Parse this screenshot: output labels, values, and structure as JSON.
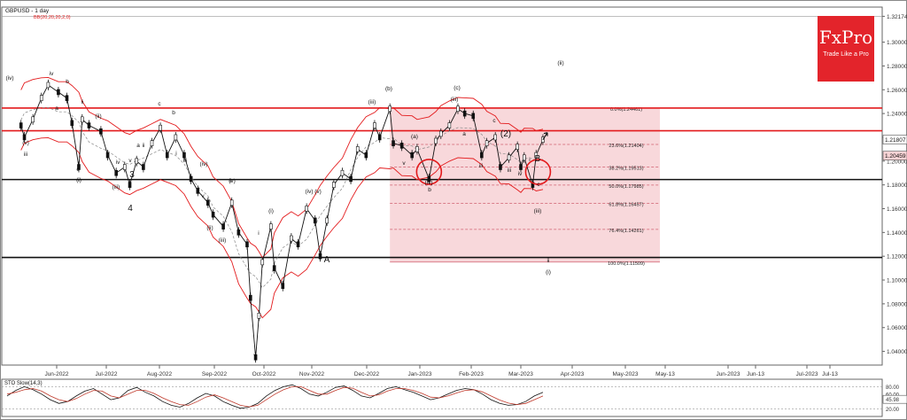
{
  "chart_data": {
    "type": "line",
    "title": "GBPUSD - 1 day",
    "indicator_label": "BB(20,20,20,2,0)",
    "oscillator_label": "STO Slow(14,3)",
    "y_ticks": [
      "1.32174",
      "1.30000",
      "1.28000",
      "1.26000",
      "1.24000",
      "1.22000",
      "1.20000",
      "1.18000",
      "1.16000",
      "1.14000",
      "1.12000",
      "1.10000",
      "1.08000",
      "1.06000",
      "1.04000"
    ],
    "price_tags": [
      "1.21807",
      "1.20459"
    ],
    "x_ticks": [
      "Jun-2022",
      "Jul-2022",
      "Aug-2022",
      "Sep-2022",
      "Oct-2022",
      "Nov-2022",
      "Dec-2022",
      "Jan-2023",
      "Feb-2023",
      "Mar-2023",
      "Apr-2023",
      "May-2023",
      "May-13",
      "Jun-2023",
      "Jun-13",
      "Jul-2023",
      "Jul-13"
    ],
    "osc_ticks": [
      "80.00",
      "60.00",
      "45.98",
      "20.00"
    ],
    "y_range": [
      1.0285,
      1.3295
    ],
    "fib_levels": [
      {
        "label": "0.0%(1.24461)",
        "value": 1.24461
      },
      {
        "label": "23.6%(1.21404)",
        "value": 1.21404
      },
      {
        "label": "38.2%(1.19513)",
        "value": 1.19513
      },
      {
        "label": "50.0%(1.17985)",
        "value": 1.17985
      },
      {
        "label": "61.8%(1.16457)",
        "value": 1.16457
      },
      {
        "label": "76.4%(1.14261)",
        "value": 1.14261
      },
      {
        "label": "100.0%(1.11509)",
        "value": 1.11509
      }
    ],
    "horizontal_lines": [
      {
        "value": 1.2446,
        "color": "#e31a1c"
      },
      {
        "value": 1.2255,
        "color": "#e31a1c"
      },
      {
        "value": 1.1845,
        "color": "#111111"
      },
      {
        "value": 1.119,
        "color": "#111111"
      }
    ],
    "price_path": [
      {
        "x": "2022-05-11",
        "y": 1.23
      },
      {
        "x": "2022-05-13",
        "y": 1.22
      },
      {
        "x": "2022-05-18",
        "y": 1.235
      },
      {
        "x": "2022-05-23",
        "y": 1.253
      },
      {
        "x": "2022-05-27",
        "y": 1.264
      },
      {
        "x": "2022-06-02",
        "y": 1.258
      },
      {
        "x": "2022-06-07",
        "y": 1.253
      },
      {
        "x": "2022-06-10",
        "y": 1.232
      },
      {
        "x": "2022-06-14",
        "y": 1.195
      },
      {
        "x": "2022-06-16",
        "y": 1.235
      },
      {
        "x": "2022-06-20",
        "y": 1.23
      },
      {
        "x": "2022-06-27",
        "y": 1.225
      },
      {
        "x": "2022-07-01",
        "y": 1.205
      },
      {
        "x": "2022-07-06",
        "y": 1.19
      },
      {
        "x": "2022-07-11",
        "y": 1.195
      },
      {
        "x": "2022-07-14",
        "y": 1.18
      },
      {
        "x": "2022-07-18",
        "y": 1.2
      },
      {
        "x": "2022-07-22",
        "y": 1.195
      },
      {
        "x": "2022-07-27",
        "y": 1.215
      },
      {
        "x": "2022-08-01",
        "y": 1.228
      },
      {
        "x": "2022-08-05",
        "y": 1.205
      },
      {
        "x": "2022-08-10",
        "y": 1.22
      },
      {
        "x": "2022-08-15",
        "y": 1.205
      },
      {
        "x": "2022-08-19",
        "y": 1.185
      },
      {
        "x": "2022-08-23",
        "y": 1.175
      },
      {
        "x": "2022-08-29",
        "y": 1.165
      },
      {
        "x": "2022-09-01",
        "y": 1.155
      },
      {
        "x": "2022-09-07",
        "y": 1.145
      },
      {
        "x": "2022-09-12",
        "y": 1.165
      },
      {
        "x": "2022-09-16",
        "y": 1.14
      },
      {
        "x": "2022-09-21",
        "y": 1.13
      },
      {
        "x": "2022-09-23",
        "y": 1.085
      },
      {
        "x": "2022-09-26",
        "y": 1.035
      },
      {
        "x": "2022-09-28",
        "y": 1.07
      },
      {
        "x": "2022-09-30",
        "y": 1.115
      },
      {
        "x": "2022-10-05",
        "y": 1.145
      },
      {
        "x": "2022-10-07",
        "y": 1.11
      },
      {
        "x": "2022-10-12",
        "y": 1.095
      },
      {
        "x": "2022-10-17",
        "y": 1.135
      },
      {
        "x": "2022-10-21",
        "y": 1.13
      },
      {
        "x": "2022-10-26",
        "y": 1.16
      },
      {
        "x": "2022-10-31",
        "y": 1.15
      },
      {
        "x": "2022-11-03",
        "y": 1.12
      },
      {
        "x": "2022-11-07",
        "y": 1.15
      },
      {
        "x": "2022-11-11",
        "y": 1.18
      },
      {
        "x": "2022-11-16",
        "y": 1.19
      },
      {
        "x": "2022-11-21",
        "y": 1.185
      },
      {
        "x": "2022-11-25",
        "y": 1.21
      },
      {
        "x": "2022-11-30",
        "y": 1.205
      },
      {
        "x": "2022-12-05",
        "y": 1.23
      },
      {
        "x": "2022-12-08",
        "y": 1.22
      },
      {
        "x": "2022-12-14",
        "y": 1.244
      },
      {
        "x": "2022-12-16",
        "y": 1.215
      },
      {
        "x": "2022-12-21",
        "y": 1.213
      },
      {
        "x": "2022-12-27",
        "y": 1.205
      },
      {
        "x": "2022-12-30",
        "y": 1.21
      },
      {
        "x": "2023-01-06",
        "y": 1.185
      },
      {
        "x": "2023-01-10",
        "y": 1.217
      },
      {
        "x": "2023-01-13",
        "y": 1.223
      },
      {
        "x": "2023-01-18",
        "y": 1.23
      },
      {
        "x": "2023-01-23",
        "y": 1.244
      },
      {
        "x": "2023-01-27",
        "y": 1.24
      },
      {
        "x": "2023-02-01",
        "y": 1.238
      },
      {
        "x": "2023-02-06",
        "y": 1.205
      },
      {
        "x": "2023-02-09",
        "y": 1.215
      },
      {
        "x": "2023-02-14",
        "y": 1.22
      },
      {
        "x": "2023-02-17",
        "y": 1.195
      },
      {
        "x": "2023-02-22",
        "y": 1.203
      },
      {
        "x": "2023-02-27",
        "y": 1.212
      },
      {
        "x": "2023-03-01",
        "y": 1.195
      },
      {
        "x": "2023-03-03",
        "y": 1.203
      },
      {
        "x": "2023-03-08",
        "y": 1.18
      },
      {
        "x": "2023-03-10",
        "y": 1.205
      },
      {
        "x": "2023-03-14",
        "y": 1.218
      }
    ],
    "wave_labels": [
      "(iv)",
      "(v)",
      "iii",
      "iv",
      "a",
      "b",
      "c",
      "ii",
      "i",
      "(i)",
      "(ii)",
      "(iii)",
      "iv",
      "v",
      "3",
      "4",
      "c",
      "b",
      "a",
      "ii",
      "i",
      "iii",
      "(iv)",
      "(v)",
      "v",
      "(iii)",
      "(ii)",
      "ii",
      "i",
      "(i)",
      "v",
      "iii",
      "(iv)",
      "(v)",
      "A",
      "(iii)",
      "(b)",
      "(c)",
      "(a)",
      "(iv)",
      "v",
      "b",
      "(iii)",
      "c",
      "a",
      "iii",
      "(2)",
      "B",
      "c",
      "(ii)",
      "(i)",
      "ii",
      "iii",
      "iv",
      "i",
      "(iii)"
    ],
    "stoch_k": [
      55,
      70,
      80,
      72,
      60,
      45,
      35,
      40,
      55,
      68,
      75,
      60,
      45,
      50,
      70,
      78,
      65,
      55,
      40,
      30,
      25,
      35,
      50,
      62,
      55,
      40,
      30,
      22,
      25,
      35,
      55,
      70,
      80,
      85,
      75,
      60,
      55,
      65,
      78,
      82,
      70,
      55,
      50,
      62,
      75,
      80,
      72,
      65,
      55,
      45,
      50,
      60,
      70,
      75,
      72,
      60,
      45,
      35,
      30,
      32,
      40,
      55,
      65
    ],
    "stoch_d": [
      60,
      65,
      72,
      75,
      68,
      55,
      45,
      40,
      48,
      60,
      70,
      68,
      55,
      50,
      60,
      70,
      70,
      62,
      50,
      40,
      32,
      30,
      40,
      52,
      58,
      50,
      40,
      30,
      26,
      30,
      45,
      60,
      72,
      80,
      80,
      70,
      60,
      60,
      70,
      78,
      76,
      65,
      55,
      58,
      68,
      75,
      75,
      70,
      62,
      52,
      50,
      55,
      63,
      70,
      72,
      66,
      55,
      44,
      36,
      32,
      35,
      45,
      55
    ]
  },
  "logo": {
    "brand": "FxPro",
    "tagline": "Trade Like a Pro"
  }
}
